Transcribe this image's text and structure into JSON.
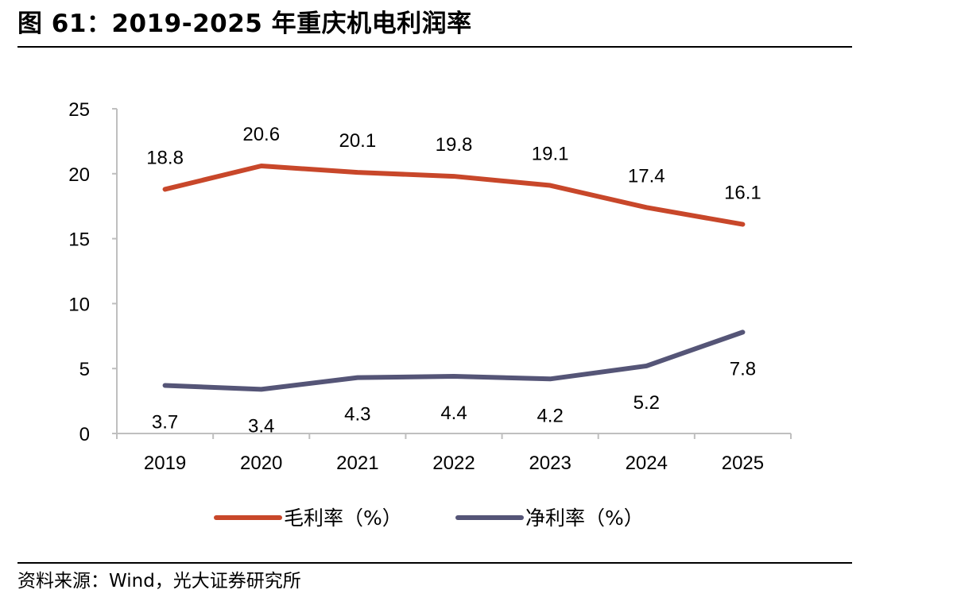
{
  "title": "图 61：2019-2025 年重庆机电利润率",
  "source": "资料来源：Wind，光大证券研究所",
  "chart_data": {
    "type": "line",
    "x": [
      "2019",
      "2020",
      "2021",
      "2022",
      "2023",
      "2024",
      "2025"
    ],
    "series": [
      {
        "name": "毛利率（%）",
        "color": "#C8472A",
        "values": [
          18.8,
          20.6,
          20.1,
          19.8,
          19.1,
          17.4,
          16.1
        ]
      },
      {
        "name": "净利率（%）",
        "color": "#555577",
        "values": [
          3.7,
          3.4,
          4.3,
          4.4,
          4.2,
          5.2,
          7.8
        ]
      }
    ],
    "ylim": [
      0,
      25
    ],
    "yticks": [
      0,
      5,
      10,
      15,
      20,
      25
    ],
    "grid": false,
    "legend": "bottom"
  }
}
